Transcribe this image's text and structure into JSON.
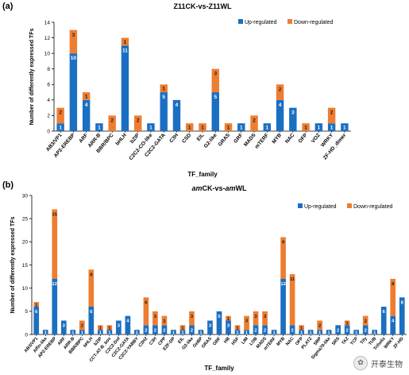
{
  "colors": {
    "up": "#1b6fc2",
    "down": "#ee7d31"
  },
  "chart_data": [
    {
      "type": "bar",
      "stacked": true,
      "panel": "(a)",
      "title": "Z11CK-vs-Z11WL",
      "title_parts": [
        [
          "Z11CK-vs-Z11WL",
          false
        ]
      ],
      "xlabel": "TF_family",
      "ylabel": "Number of differently expressed TFs",
      "ylim": [
        0,
        14
      ],
      "yticks": [
        0,
        2,
        4,
        6,
        8,
        10,
        12,
        14
      ],
      "grid": false,
      "legend": "top-right",
      "categories": [
        "AB3/VP1",
        "AP2-EREBP",
        "ARF",
        "ARR-B",
        "BBR/BPC",
        "bHLH",
        "bZIP",
        "C2C2-CO-like",
        "C2C2-GATA",
        "C3H",
        "CSD",
        "EIL",
        "G2-like",
        "GRAS",
        "GRF",
        "MADS",
        "mTERF",
        "MYB",
        "NAC",
        "OFP",
        "VOZ",
        "WRKY",
        "ZF-HD_dimer"
      ],
      "series": [
        {
          "name": "Up-regulated",
          "values": [
            1,
            10,
            4,
            1,
            0,
            11,
            0,
            1,
            5,
            4,
            0,
            0,
            5,
            0,
            1,
            0,
            1,
            4,
            3,
            0,
            1,
            1,
            1
          ]
        },
        {
          "name": "Down-regulated",
          "values": [
            2,
            3,
            1,
            0,
            2,
            1,
            2,
            0,
            1,
            0,
            1,
            1,
            3,
            1,
            0,
            2,
            0,
            2,
            0,
            1,
            0,
            2,
            0
          ]
        }
      ]
    },
    {
      "type": "bar",
      "stacked": true,
      "panel": "(b)",
      "title": "amCK-vs-amWL",
      "title_parts": [
        [
          "am",
          true
        ],
        [
          "CK-vs-",
          false
        ],
        [
          "am",
          true
        ],
        [
          "WL",
          false
        ]
      ],
      "xlabel": "TF_family",
      "ylabel": "Number of differently expressed TFs",
      "ylim": [
        0,
        30
      ],
      "yticks": [
        0,
        5,
        10,
        15,
        20,
        25,
        30
      ],
      "grid": false,
      "legend": "top-right",
      "categories": [
        "AB3/VP1",
        "Alfin-like",
        "AP2-EREBP",
        "ARF",
        "ARR-B",
        "BBR/BPC",
        "bHLH",
        "bZIP",
        "CCT-AT-B_box",
        "C2C2-Dof",
        "C2C2-GATA",
        "C2C2-YABBY",
        "C2H2",
        "C3H",
        "CPP",
        "E2F-DP",
        "EIL",
        "G2-like",
        "GeBP",
        "GRAS",
        "GRF",
        "HB",
        "HSF",
        "LIM",
        "LOB",
        "MADS",
        "mTERF",
        "MYB",
        "NAC",
        "OFP",
        "PLATZ",
        "SBP",
        "Sigma70-like",
        "SRS",
        "TAZ",
        "TCP",
        "Tify",
        "TUB",
        "Trihelix",
        "WRKY",
        "ZF-HD"
      ],
      "series": [
        {
          "name": "Up-regulated",
          "values": [
            6,
            1,
            12,
            3,
            1,
            1,
            6,
            1,
            1,
            3,
            4,
            1,
            2,
            2,
            2,
            1,
            1,
            2,
            1,
            3,
            5,
            3,
            1,
            1,
            2,
            2,
            1,
            12,
            2,
            1,
            1,
            1,
            1,
            2,
            2,
            1,
            2,
            1,
            6,
            4,
            8
          ]
        },
        {
          "name": "Down-regulated",
          "values": [
            1,
            0,
            15,
            0,
            0,
            2,
            8,
            1,
            1,
            0,
            0,
            0,
            6,
            3,
            2,
            0,
            1,
            3,
            0,
            0,
            0,
            1,
            1,
            3,
            3,
            3,
            0,
            9,
            11,
            1,
            0,
            2,
            0,
            0,
            1,
            0,
            2,
            0,
            0,
            8,
            0
          ]
        }
      ]
    }
  ],
  "watermark": {
    "text": "开泰生物",
    "icon": "wechat-bubble-icon"
  }
}
